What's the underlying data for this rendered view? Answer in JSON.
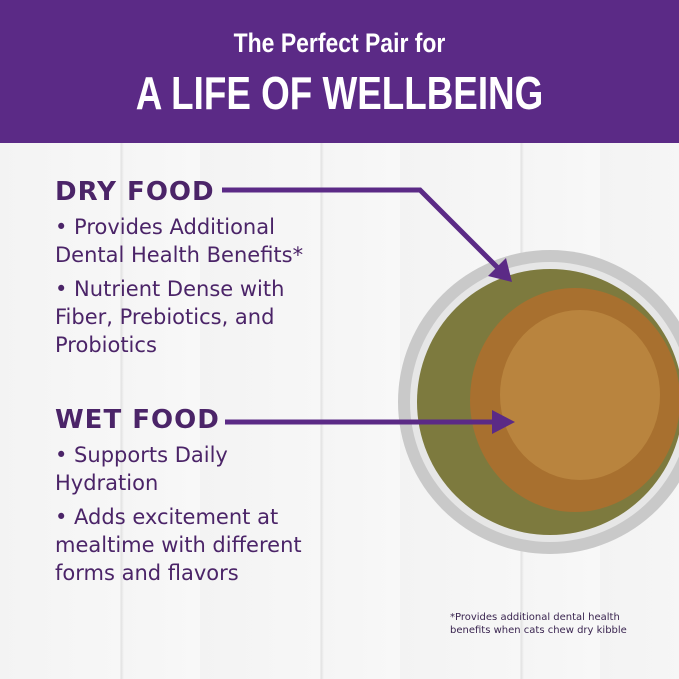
{
  "header": {
    "line1": "The Perfect Pair for",
    "line2": "A LIFE OF WELLBEING"
  },
  "dry": {
    "title": "DRY FOOD",
    "bullets": [
      "• Provides Additional Dental Health Benefits*",
      "• Nutrient Dense with Fiber, Prebiotics, and Probiotics"
    ]
  },
  "wet": {
    "title": "WET FOOD",
    "bullets": [
      "• Supports Daily Hydration",
      "• Adds excitement at mealtime with different forms and flavors"
    ]
  },
  "footnote": {
    "line1": "*Provides additional dental health",
    "line2": "benefits when cats chew dry kibble"
  },
  "colors": {
    "brand": "#5b2a86",
    "text": "#4b2468"
  }
}
